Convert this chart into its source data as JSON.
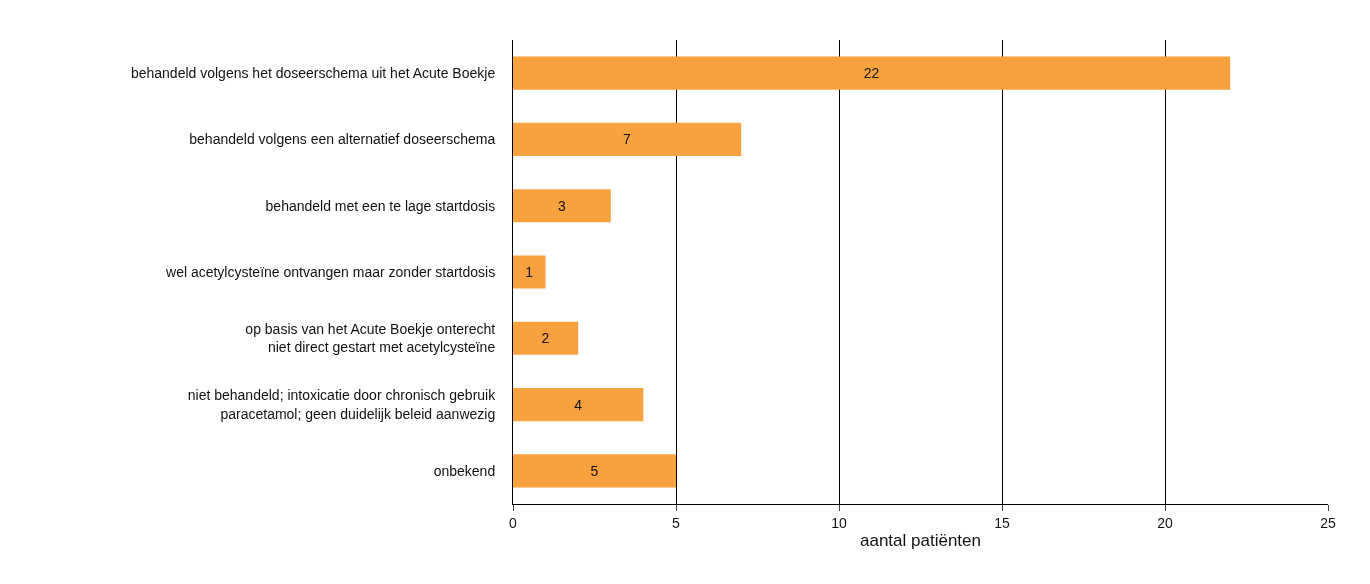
{
  "chart_data": {
    "type": "bar",
    "orientation": "horizontal",
    "categories": [
      "behandeld volgens het doseerschema uit het Acute Boekje",
      "behandeld volgens een alternatief doseerschema",
      "behandeld met een te lage startdosis",
      "wel acetylcysteïne ontvangen maar zonder startdosis",
      "op basis van het Acute Boekje onterecht\nniet direct gestart met acetylcysteïne",
      "niet behandeld; intoxicatie door chronisch gebruik\nparacetamol; geen duidelijk beleid aanwezig",
      "onbekend"
    ],
    "values": [
      22,
      7,
      3,
      1,
      2,
      4,
      5
    ],
    "color": "#f7a23e",
    "data_labels": true,
    "xlabel": "aantal patiënten",
    "xlim": [
      0,
      25
    ],
    "xticks": [
      0,
      5,
      10,
      15,
      20,
      25
    ],
    "grid": "x",
    "legend": false
  }
}
